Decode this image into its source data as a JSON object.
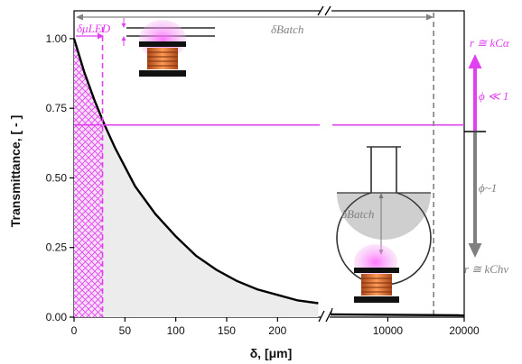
{
  "chart_data": {
    "type": "line",
    "title": "",
    "xlabel": "δ, [μm]",
    "ylabel": "Transmittance, [ - ]",
    "ylim": [
      0,
      1.1
    ],
    "x_segments": [
      {
        "xlim": [
          0,
          245
        ],
        "ticks": [
          "0",
          "50",
          "100",
          "150",
          "200"
        ],
        "tick_values": [
          0,
          50,
          100,
          150,
          200
        ]
      },
      {
        "xlim": [
          2500,
          20000
        ],
        "ticks": [
          "10000",
          "20000"
        ],
        "tick_values": [
          10000,
          20000
        ]
      }
    ],
    "y_ticks": [
      "0.00",
      "0.25",
      "0.50",
      "0.75",
      "1.00"
    ],
    "y_tick_values": [
      0,
      0.25,
      0.5,
      0.75,
      1.0
    ],
    "series": [
      {
        "x": [
          0,
          10,
          20,
          30,
          40,
          50,
          60,
          80,
          100,
          120,
          140,
          160,
          180,
          200,
          220,
          240
        ],
        "y": [
          1.0,
          0.88,
          0.78,
          0.69,
          0.61,
          0.54,
          0.47,
          0.37,
          0.29,
          0.22,
          0.17,
          0.13,
          0.1,
          0.08,
          0.06,
          0.05
        ]
      }
    ],
    "threshold_y": 0.69,
    "delta_led_x": 28,
    "delta_batch_x": 16000,
    "annotations": {
      "delta_led": "δμLED",
      "delta_batch_top": "δBatch",
      "delta_batch_flask": "δBatch",
      "phi_low": "ϕ ≪ 1",
      "phi_high": "ϕ~1",
      "rate_top": "r ≅ kCα",
      "rate_bottom": "r ≅ kChν"
    },
    "colors": {
      "curve": "#000000",
      "magenta": "#e040f0",
      "gray": "#808080",
      "fill": "#ececec"
    }
  }
}
